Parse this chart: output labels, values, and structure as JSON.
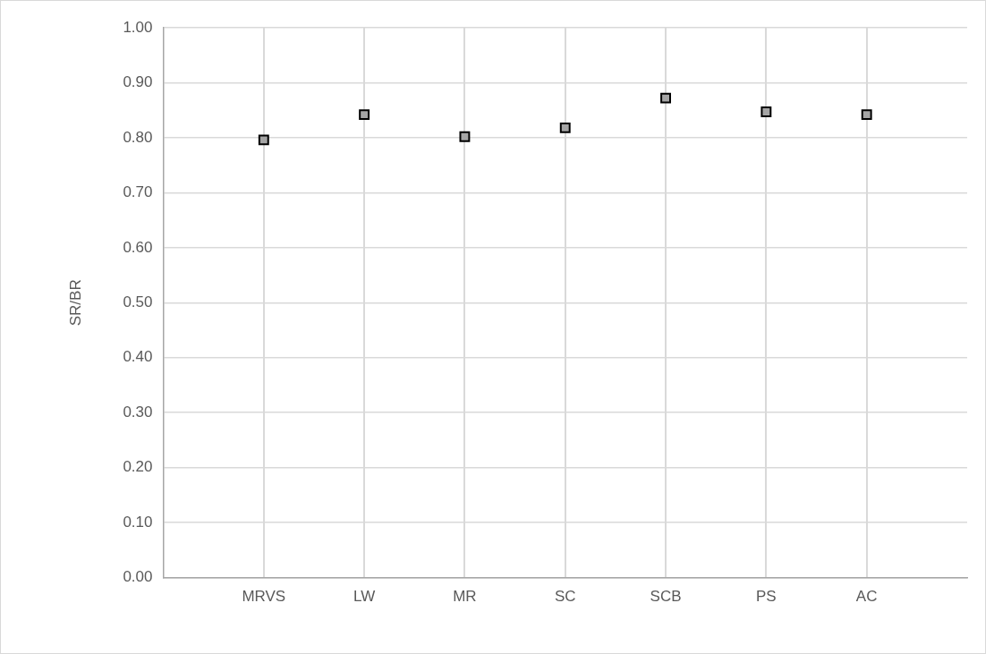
{
  "chart_data": {
    "type": "scatter",
    "ylabel": "SR/BR",
    "categories": [
      "MRVS",
      "LW",
      "MR",
      "SC",
      "SCB",
      "PS",
      "AC"
    ],
    "series": [
      {
        "color": "#a5a5a5",
        "values": [
          0.796,
          0.842,
          0.802,
          0.818,
          0.872,
          0.847,
          0.842
        ]
      }
    ],
    "ylim": [
      0,
      1
    ],
    "yticks": [
      {
        "value": 0,
        "label": "0.00"
      },
      {
        "value": 0.1,
        "label": "0.10"
      },
      {
        "value": 0.2,
        "label": "0.20"
      },
      {
        "value": 0.3,
        "label": "0.30"
      },
      {
        "value": 0.4,
        "label": "0.40"
      },
      {
        "value": 0.5,
        "label": "0.50"
      },
      {
        "value": 0.6,
        "label": "0.60"
      },
      {
        "value": 0.7,
        "label": "0.70"
      },
      {
        "value": 0.8,
        "label": "0.80"
      },
      {
        "value": 0.9,
        "label": "0.90"
      },
      {
        "value": 1,
        "label": "1.00"
      }
    ],
    "grid": true,
    "marker": "square",
    "legend": false
  }
}
